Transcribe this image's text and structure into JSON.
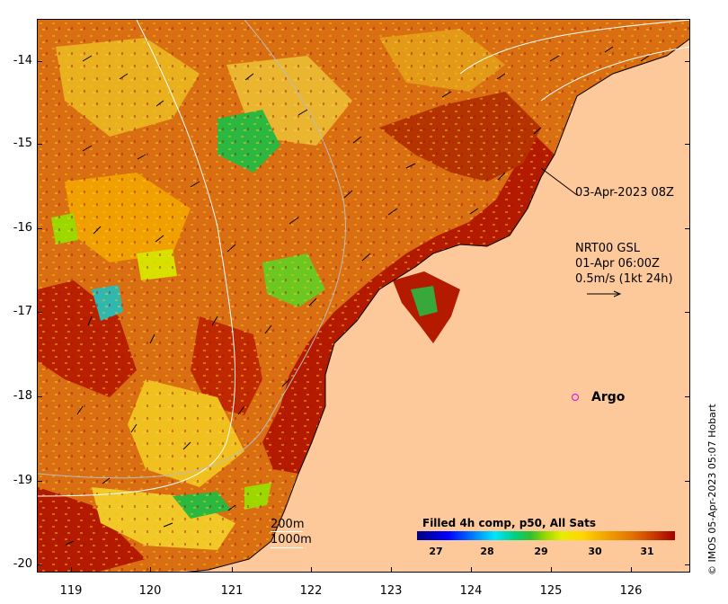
{
  "map": {
    "top_label": "03-Apr-2023 08Z",
    "current_legend": {
      "line1": "NRT00 GSL",
      "line2": "01-Apr 06:00Z",
      "line3": "0.5m/s (1kt 24h)"
    },
    "argo_label": "Argo",
    "depth_contours": {
      "c200": "200m",
      "c1000": "1000m"
    },
    "credit": "© IMOS 05-Apr-2023 05:07 Hobart",
    "y_axis_ticks": [
      "-14",
      "-15",
      "-16",
      "-17",
      "-18",
      "-19",
      "-20"
    ],
    "x_axis_ticks": [
      "119",
      "120",
      "121",
      "122",
      "123",
      "124",
      "125",
      "126"
    ],
    "colorbar": {
      "title": "Filled 4h comp, p50, All Sats",
      "ticks": [
        "27",
        "28",
        "29",
        "30",
        "31"
      ]
    },
    "colors": {
      "land": "#fdc99a",
      "warm": "#b41a00",
      "mid": "#e08a10",
      "cool": "#2ab840",
      "argo": "#e000e0"
    }
  }
}
